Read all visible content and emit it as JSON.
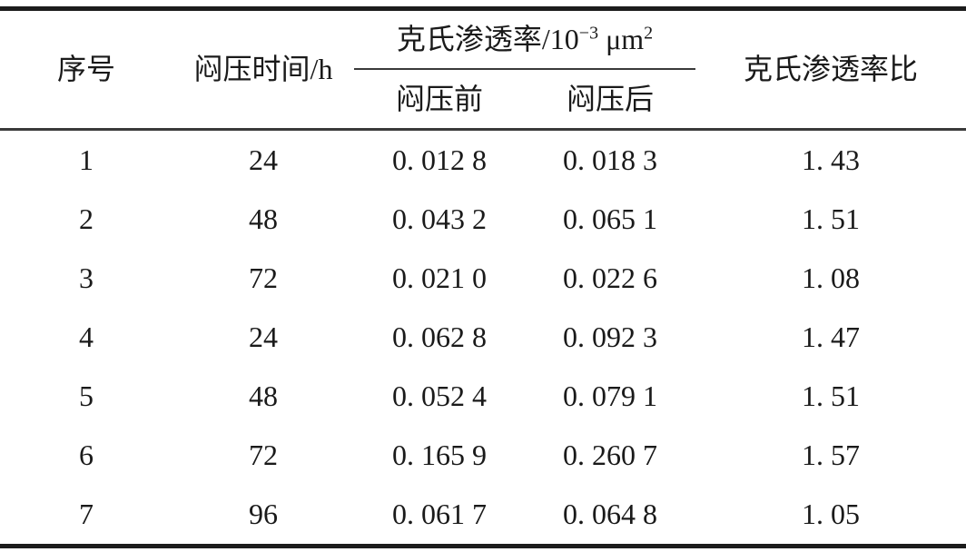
{
  "table": {
    "title_semantic": "闷压前后克氏渗透率对比表",
    "header": {
      "serial": "序号",
      "soak_time": "闷压时间/h",
      "perm_group": {
        "prefix": "克氏渗透率/10",
        "exp_sup": "−3",
        "unit": " μm",
        "unit_sup": "2"
      },
      "perm_before": "闷压前",
      "perm_after": "闷压后",
      "perm_ratio": "克氏渗透率比"
    },
    "columns": [
      "序号",
      "闷压时间/h",
      "闷压前",
      "闷压后",
      "克氏渗透率比"
    ],
    "rows": [
      [
        "1",
        "24",
        "0. 012 8",
        "0. 018 3",
        "1. 43"
      ],
      [
        "2",
        "48",
        "0. 043 2",
        "0. 065 1",
        "1. 51"
      ],
      [
        "3",
        "72",
        "0. 021 0",
        "0. 022 6",
        "1. 08"
      ],
      [
        "4",
        "24",
        "0. 062 8",
        "0. 092 3",
        "1. 47"
      ],
      [
        "5",
        "48",
        "0. 052 4",
        "0. 079 1",
        "1. 51"
      ],
      [
        "6",
        "72",
        "0. 165 9",
        "0. 260 7",
        "1. 57"
      ],
      [
        "7",
        "96",
        "0. 061 7",
        "0. 064 8",
        "1. 05"
      ]
    ]
  },
  "colors": {
    "text": "#1a1a1a",
    "rule_thick": "#1c1c1c",
    "rule_thin": "#3a3a3a",
    "background": "#ffffff"
  }
}
